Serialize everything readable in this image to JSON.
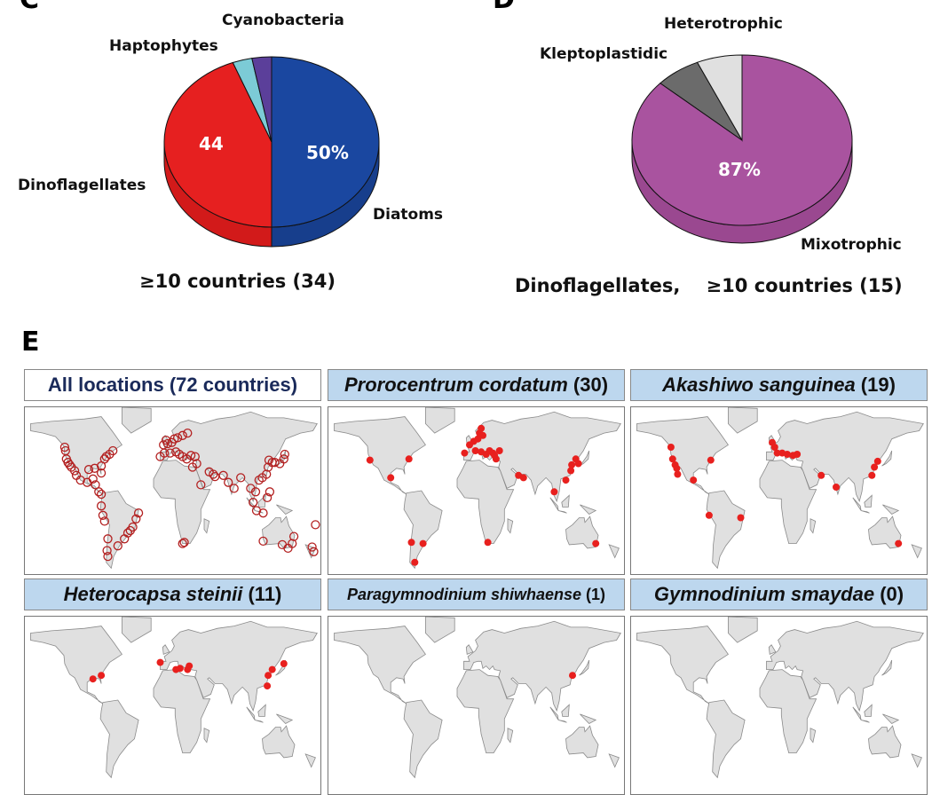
{
  "chart_data": [
    {
      "type": "pie",
      "panel": "C",
      "caption": "≥10 countries (34)",
      "slices": [
        {
          "label": "Diatoms",
          "value": 17,
          "percent": 50,
          "color": "#1a47a0",
          "side": "#173e8c",
          "inner_label": "50%"
        },
        {
          "label": "Dinoflagellates",
          "value": 15,
          "percent": 44,
          "color": "#e62020",
          "side": "#d21a1a",
          "inner_label": "44"
        },
        {
          "label": "Haptophytes",
          "value": 1,
          "percent": 3,
          "color": "#7ccbd6",
          "side": "#6ab5c0",
          "inner_label": ""
        },
        {
          "label": "Cyanobacteria",
          "value": 1,
          "percent": 3,
          "color": "#5b3f9a",
          "side": "#4e3686",
          "inner_label": ""
        }
      ]
    },
    {
      "type": "pie",
      "panel": "D",
      "caption": "Dinoflagellates,    ≥10 countries (15)",
      "slices": [
        {
          "label": "Mixotrophic",
          "value": 13,
          "percent": 87,
          "color": "#a9539f",
          "side": "#9a4890",
          "inner_label": "87%"
        },
        {
          "label": "Kleptoplastidic",
          "value": 1,
          "percent": 6.5,
          "color": "#6b6b6b",
          "side": "#5a5a5a",
          "inner_label": ""
        },
        {
          "label": "Heterotrophic",
          "value": 1,
          "percent": 6.5,
          "color": "#e0e0e0",
          "side": "#cfcfcf",
          "inner_label": ""
        }
      ]
    },
    {
      "type": "scatter",
      "panel": "E",
      "maps": [
        {
          "title": "All locations (72 countries)",
          "italic": "",
          "count": "",
          "style": "hollow",
          "points": [
            [
              -124,
              48
            ],
            [
              -123,
              45
            ],
            [
              -122,
              38
            ],
            [
              -120,
              35
            ],
            [
              -118,
              33
            ],
            [
              -116,
              31
            ],
            [
              -112,
              28
            ],
            [
              -110,
              24
            ],
            [
              -105,
              20
            ],
            [
              -97,
              18
            ],
            [
              -90,
              21
            ],
            [
              -87,
              16
            ],
            [
              -83,
              10
            ],
            [
              -80,
              8
            ],
            [
              -76,
              38
            ],
            [
              -74,
              40
            ],
            [
              -70,
              42
            ],
            [
              -66,
              45
            ],
            [
              -80,
              32
            ],
            [
              -80,
              26
            ],
            [
              -88,
              30
            ],
            [
              -95,
              29
            ],
            [
              -80,
              -2
            ],
            [
              -78,
              -10
            ],
            [
              -76,
              -15
            ],
            [
              -72,
              -30
            ],
            [
              -73,
              -40
            ],
            [
              -72,
              -45
            ],
            [
              -48,
              -25
            ],
            [
              -45,
              -23
            ],
            [
              -42,
              -20
            ],
            [
              -38,
              -13
            ],
            [
              -35,
              -8
            ],
            [
              -52,
              -30
            ],
            [
              -60,
              -36
            ],
            [
              -5,
              50
            ],
            [
              -2,
              54
            ],
            [
              0,
              51
            ],
            [
              5,
              52
            ],
            [
              8,
              55
            ],
            [
              12,
              56
            ],
            [
              18,
              58
            ],
            [
              24,
              60
            ],
            [
              -9,
              40
            ],
            [
              -4,
              43
            ],
            [
              3,
              43
            ],
            [
              10,
              44
            ],
            [
              14,
              42
            ],
            [
              18,
              40
            ],
            [
              23,
              38
            ],
            [
              28,
              41
            ],
            [
              33,
              40
            ],
            [
              35,
              34
            ],
            [
              30,
              31
            ],
            [
              40,
              16
            ],
            [
              50,
              27
            ],
            [
              55,
              25
            ],
            [
              57,
              23
            ],
            [
              67,
              24
            ],
            [
              73,
              18
            ],
            [
              80,
              13
            ],
            [
              88,
              22
            ],
            [
              100,
              13
            ],
            [
              106,
              10
            ],
            [
              110,
              20
            ],
            [
              114,
              22
            ],
            [
              119,
              25
            ],
            [
              121,
              31
            ],
            [
              122,
              37
            ],
            [
              126,
              35
            ],
            [
              129,
              35
            ],
            [
              135,
              34
            ],
            [
              140,
              38
            ],
            [
              141,
              42
            ],
            [
              103,
              1
            ],
            [
              107,
              -6
            ],
            [
              115,
              -8
            ],
            [
              120,
              5
            ],
            [
              123,
              10
            ],
            [
              18,
              -34
            ],
            [
              20,
              -33
            ],
            [
              115,
              -32
            ],
            [
              150,
              -34
            ],
            [
              152,
              -28
            ],
            [
              145,
              -38
            ],
            [
              138,
              -35
            ],
            [
              174,
              -37
            ],
            [
              176,
              -41
            ],
            [
              178,
              -18
            ]
          ]
        },
        {
          "title": "",
          "italic": "Prorocentrum cordatum",
          "count": " (30)",
          "style": "filled",
          "points": [
            [
              -122,
              37
            ],
            [
              -97,
              22
            ],
            [
              -75,
              38
            ],
            [
              -72,
              -33
            ],
            [
              -58,
              -34
            ],
            [
              -68,
              -50
            ],
            [
              20,
              -33
            ],
            [
              -8,
              43
            ],
            [
              -2,
              50
            ],
            [
              3,
              53
            ],
            [
              8,
              55
            ],
            [
              10,
              60
            ],
            [
              12,
              64
            ],
            [
              14,
              58
            ],
            [
              5,
              45
            ],
            [
              12,
              44
            ],
            [
              18,
              42
            ],
            [
              22,
              45
            ],
            [
              26,
              43
            ],
            [
              28,
              41
            ],
            [
              30,
              38
            ],
            [
              34,
              45
            ],
            [
              57,
              24
            ],
            [
              63,
              22
            ],
            [
              100,
              10
            ],
            [
              114,
              20
            ],
            [
              120,
              28
            ],
            [
              121,
              33
            ],
            [
              126,
              38
            ],
            [
              129,
              34
            ],
            [
              150,
              -34
            ]
          ]
        },
        {
          "title": "",
          "italic": "Akashiwo sanguinea",
          "count": " (19)",
          "style": "filled",
          "points": [
            [
              -124,
              48
            ],
            [
              -122,
              38
            ],
            [
              -119,
              33
            ],
            [
              -117,
              30
            ],
            [
              -116,
              25
            ],
            [
              -97,
              20
            ],
            [
              -76,
              37
            ],
            [
              -78,
              -10
            ],
            [
              -40,
              -12
            ],
            [
              -2,
              52
            ],
            [
              1,
              48
            ],
            [
              4,
              43
            ],
            [
              10,
              43
            ],
            [
              16,
              42
            ],
            [
              23,
              41
            ],
            [
              28,
              42
            ],
            [
              57,
              24
            ],
            [
              75,
              14
            ],
            [
              118,
              24
            ],
            [
              121,
              31
            ],
            [
              125,
              36
            ],
            [
              150,
              -34
            ]
          ]
        },
        {
          "title": "",
          "italic": "Heterocapsa steinii",
          "count": " (11)",
          "style": "filled",
          "points": [
            [
              -90,
              29
            ],
            [
              -80,
              32
            ],
            [
              -9,
              43
            ],
            [
              10,
              37
            ],
            [
              15,
              38
            ],
            [
              24,
              37
            ],
            [
              26,
              40
            ],
            [
              120,
              23
            ],
            [
              121,
              32
            ],
            [
              126,
              37
            ],
            [
              140,
              42
            ]
          ]
        },
        {
          "title": "",
          "italic": "Paragymnodinium shiwhaense",
          "count": " (1)",
          "style": "filled",
          "points": [
            [
              122,
              32
            ]
          ]
        },
        {
          "title": "",
          "italic": "Gymnodinium smaydae",
          "count": " (0)",
          "style": "filled",
          "points": []
        }
      ]
    }
  ],
  "panels": {
    "c": "C",
    "d": "D",
    "e": "E"
  }
}
